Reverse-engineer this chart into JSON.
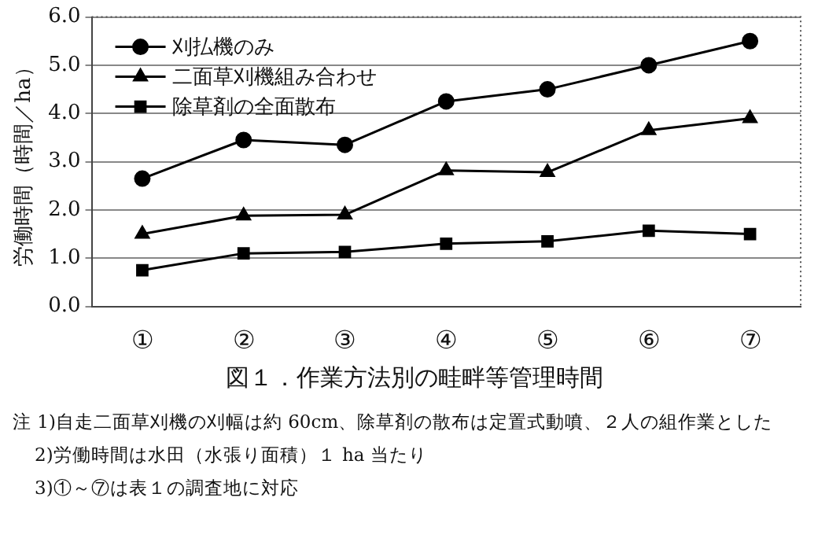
{
  "chart_data": {
    "type": "line",
    "title": "図１．作業方法別の畦畔等管理時間",
    "ylabel": "労働時間（時間／ha）",
    "categories": [
      "①",
      "②",
      "③",
      "④",
      "⑤",
      "⑥",
      "⑦"
    ],
    "series": [
      {
        "name": "刈払機のみ",
        "color": "#000000",
        "marker": "circle",
        "values": [
          2.65,
          3.45,
          3.35,
          4.25,
          4.5,
          5.0,
          5.5
        ]
      },
      {
        "name": "二面草刈機組み合わせ",
        "color": "#000000",
        "marker": "triangle",
        "values": [
          1.5,
          1.88,
          1.9,
          2.82,
          2.78,
          3.65,
          3.9
        ]
      },
      {
        "name": "除草剤の全面散布",
        "color": "#000000",
        "marker": "square",
        "values": [
          0.75,
          1.1,
          1.13,
          1.3,
          1.35,
          1.57,
          1.5
        ]
      }
    ],
    "ylim": [
      0,
      6
    ],
    "yticks": [
      {
        "value": 0,
        "label": "0.0"
      },
      {
        "value": 1,
        "label": "1.0"
      },
      {
        "value": 2,
        "label": "2.0"
      },
      {
        "value": 3,
        "label": "3.0"
      },
      {
        "value": 4,
        "label": "4.0"
      },
      {
        "value": 5,
        "label": "5.0"
      },
      {
        "value": 6,
        "label": "6.0"
      }
    ],
    "grid": "y",
    "legend": "top left",
    "line_style": "solid",
    "annotations": [
      "注 1)自走二面草刈機の刈幅は約 60cm、除草剤の散布は定置式動噴、２人の組作業とした",
      "2)労働時間は水田（水張り面積）１ ha 当たり",
      "3)①～⑦は表１の調査地に対応"
    ]
  }
}
